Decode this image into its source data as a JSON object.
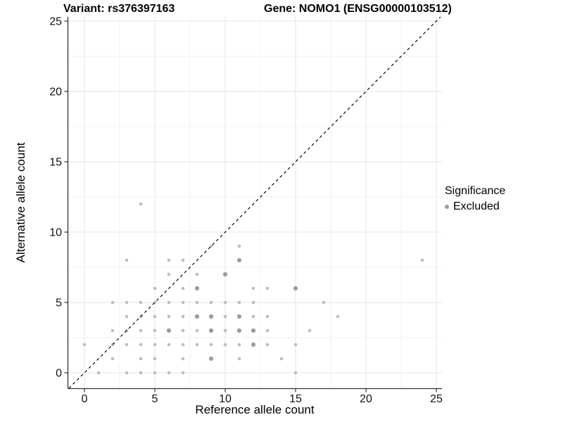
{
  "chart_data": {
    "type": "scatter",
    "title_left": "Variant: rs376397163",
    "title_right": "Gene: NOMO1 (ENSG00000103512)",
    "xlabel": "Reference allele count",
    "ylabel": "Alternative allele count",
    "xlim": [
      -1.15,
      25.4
    ],
    "ylim": [
      -1.1,
      25.3
    ],
    "xticks": [
      0,
      5,
      10,
      15,
      20,
      25
    ],
    "yticks": [
      0,
      5,
      10,
      15,
      20,
      25
    ],
    "minor_ticks": [
      2.5,
      7.5,
      12.5,
      17.5,
      22.5
    ],
    "grid": true,
    "legend": {
      "title": "Significance",
      "position": "right",
      "items": [
        {
          "label": "Excluded",
          "color": "#9e9e9e"
        }
      ]
    },
    "identity_line": {
      "style": "dashed",
      "color": "#000000",
      "from_xy": -1.1,
      "to_xy": 25.3
    },
    "colors": {
      "point_small": "#bdbdbd",
      "point_large": "#9d9d9d",
      "grid_major": "#e6e6e6",
      "grid_minor": "#f2f2f2",
      "axis_line": "#333333",
      "tick_text": "#111111"
    },
    "series": [
      {
        "name": "Excluded",
        "points": [
          [
            1,
            0,
            1
          ],
          [
            3,
            0,
            1
          ],
          [
            4,
            0,
            1
          ],
          [
            5,
            0,
            1
          ],
          [
            6,
            0,
            1
          ],
          [
            7,
            0,
            1
          ],
          [
            15,
            0,
            1
          ],
          [
            2,
            1,
            1
          ],
          [
            4,
            1,
            1
          ],
          [
            5,
            1,
            1
          ],
          [
            7,
            1,
            1
          ],
          [
            9,
            1,
            2
          ],
          [
            11,
            1,
            1
          ],
          [
            14,
            1,
            1
          ],
          [
            0,
            2,
            1
          ],
          [
            2,
            2,
            1
          ],
          [
            3,
            2,
            1
          ],
          [
            4,
            2,
            1
          ],
          [
            5,
            2,
            1
          ],
          [
            6,
            2,
            1
          ],
          [
            7,
            2,
            1
          ],
          [
            8,
            2,
            1
          ],
          [
            9,
            2,
            1
          ],
          [
            10,
            2,
            1
          ],
          [
            11,
            2,
            1
          ],
          [
            12,
            2,
            2
          ],
          [
            13,
            2,
            1
          ],
          [
            15,
            2,
            1
          ],
          [
            2,
            3,
            1
          ],
          [
            3,
            3,
            1
          ],
          [
            4,
            3,
            1
          ],
          [
            5,
            3,
            1
          ],
          [
            6,
            3,
            2
          ],
          [
            7,
            3,
            1
          ],
          [
            8,
            3,
            1
          ],
          [
            9,
            3,
            2
          ],
          [
            10,
            3,
            1
          ],
          [
            11,
            3,
            2
          ],
          [
            12,
            3,
            2
          ],
          [
            13,
            3,
            1
          ],
          [
            16,
            3,
            1
          ],
          [
            3,
            4,
            1
          ],
          [
            4,
            4,
            1
          ],
          [
            5,
            4,
            1
          ],
          [
            6,
            4,
            1
          ],
          [
            7,
            4,
            1
          ],
          [
            8,
            4,
            2
          ],
          [
            9,
            4,
            2
          ],
          [
            10,
            4,
            1
          ],
          [
            11,
            4,
            2
          ],
          [
            12,
            4,
            1
          ],
          [
            13,
            4,
            1
          ],
          [
            18,
            4,
            1
          ],
          [
            2,
            5,
            1
          ],
          [
            3,
            5,
            1
          ],
          [
            4,
            5,
            1
          ],
          [
            5,
            5,
            1
          ],
          [
            6,
            5,
            1
          ],
          [
            7,
            5,
            1
          ],
          [
            8,
            5,
            1
          ],
          [
            9,
            5,
            1
          ],
          [
            10,
            5,
            1
          ],
          [
            11,
            5,
            1
          ],
          [
            12,
            5,
            1
          ],
          [
            17,
            5,
            1
          ],
          [
            5,
            6,
            1
          ],
          [
            7,
            6,
            1
          ],
          [
            8,
            6,
            2
          ],
          [
            12,
            6,
            1
          ],
          [
            13,
            6,
            1
          ],
          [
            15,
            6,
            2
          ],
          [
            6,
            7,
            1
          ],
          [
            8,
            7,
            1
          ],
          [
            10,
            7,
            2
          ],
          [
            3,
            8,
            1
          ],
          [
            6,
            8,
            1
          ],
          [
            7,
            8,
            1
          ],
          [
            11,
            8,
            2
          ],
          [
            24,
            8,
            1
          ],
          [
            9,
            9,
            1
          ],
          [
            11,
            9,
            1
          ],
          [
            4,
            12,
            1
          ]
        ]
      }
    ]
  }
}
